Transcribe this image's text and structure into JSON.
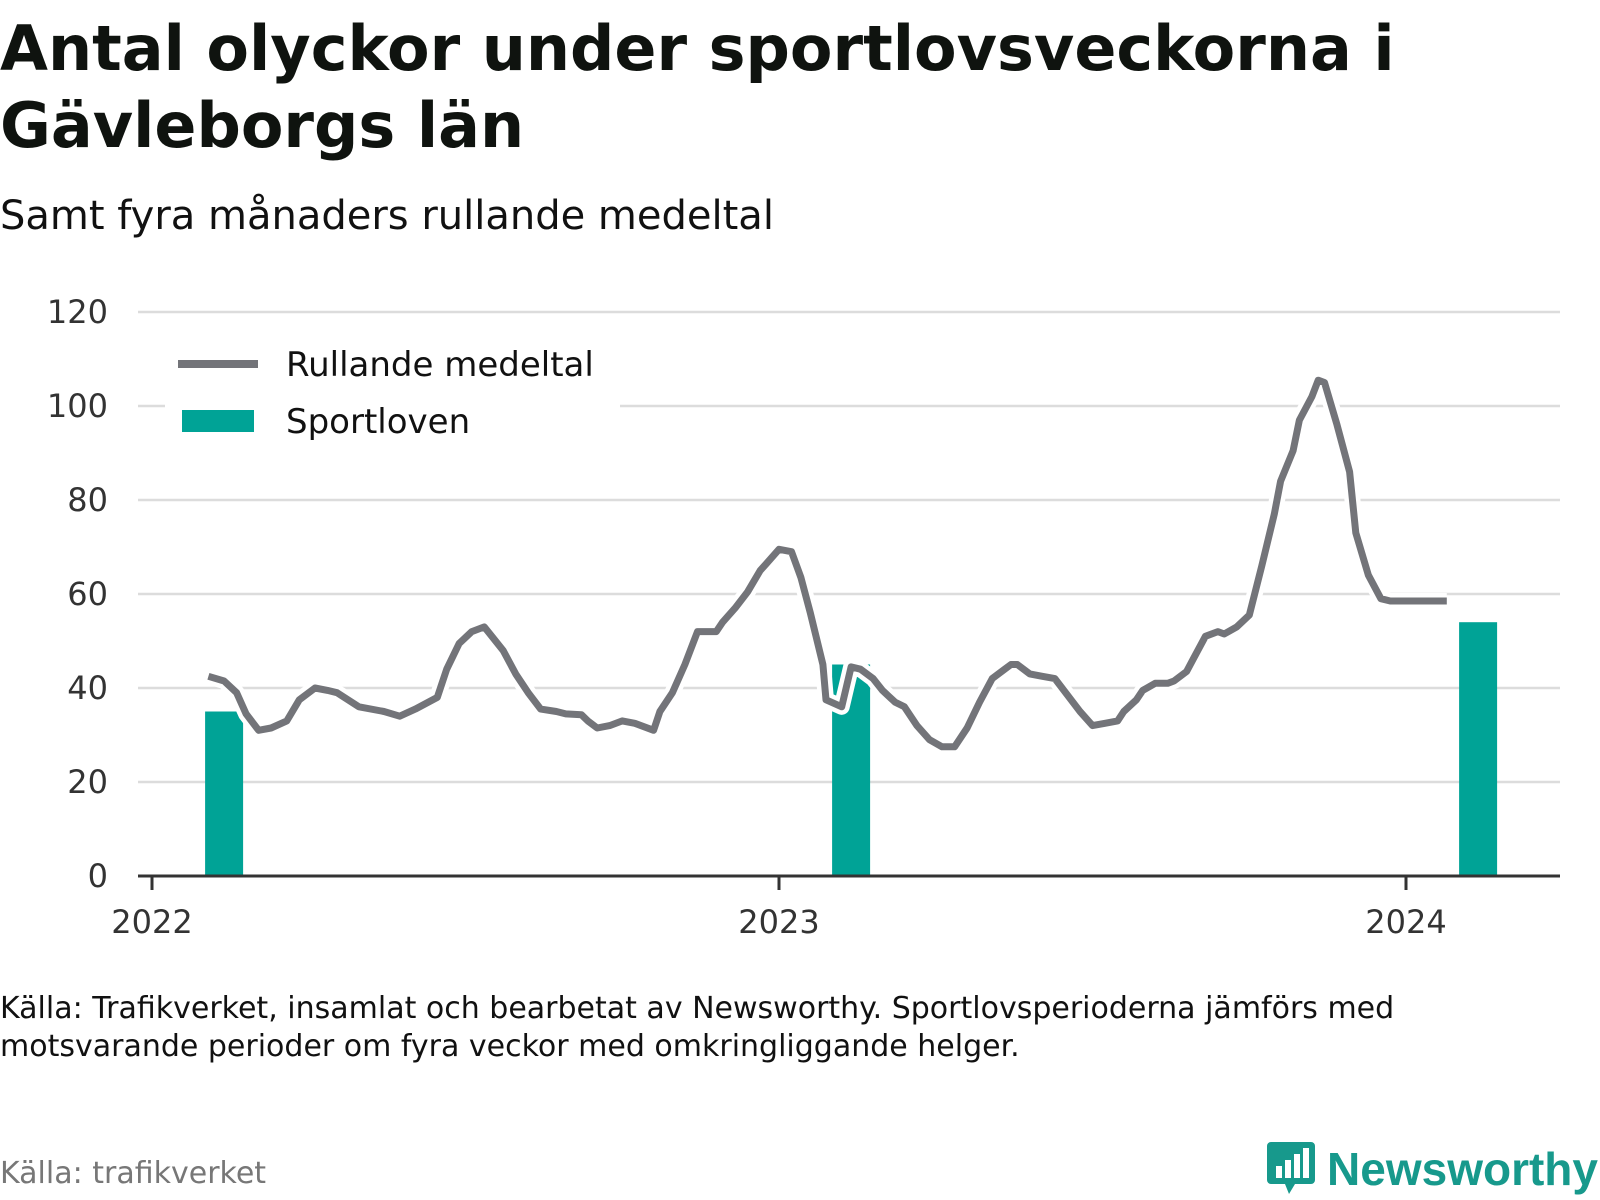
{
  "header": {
    "title": "Antal olyckor under sportlovsveckorna i Gävleborgs län",
    "subtitle": "Samt fyra månaders rullande medeltal"
  },
  "legend": {
    "line_label": "Rullande medeltal",
    "bar_label": "Sportloven",
    "placement": "top-left"
  },
  "footer": {
    "note": "Källa: Trafikverket, insamlat och bearbetat av Newsworthy. Sportlovsperioderna jämförs med motsvarande perioder om fyra veckor med omkringliggande helger.",
    "source": "Källa: trafikverket",
    "brand": "Newsworthy"
  },
  "colors": {
    "line": "#737479",
    "bar": "#00a396",
    "grid": "#dcdcdc",
    "axis": "#333333",
    "brand": "#17998c"
  },
  "icons": {
    "brand": "bar-chart-icon"
  },
  "chart_data": {
    "type": "line+bar",
    "x_axis": {
      "min": 2022.0,
      "max": 2024.25,
      "ticks": [
        "2022",
        "2023",
        "2024"
      ],
      "tick_values": [
        2022,
        2023,
        2024
      ]
    },
    "y_axis": {
      "min": 0,
      "max": 120,
      "ticks": [
        0,
        20,
        40,
        60,
        80,
        100,
        120
      ]
    },
    "grid": "horizontal",
    "bars": [
      {
        "x": 2022.115,
        "value": 35
      },
      {
        "x": 2023.115,
        "value": 45
      },
      {
        "x": 2024.115,
        "value": 54
      }
    ],
    "line": {
      "x": [
        2022.09,
        2022.115,
        2022.135,
        2022.15,
        2022.17,
        2022.19,
        2022.215,
        2022.235,
        2022.26,
        2022.28,
        2022.295,
        2022.33,
        2022.37,
        2022.395,
        2022.42,
        2022.455,
        2022.47,
        2022.49,
        2022.51,
        2022.53,
        2022.56,
        2022.58,
        2022.6,
        2022.62,
        2022.645,
        2022.66,
        2022.685,
        2022.695,
        2022.71,
        2022.73,
        2022.75,
        2022.77,
        2022.8,
        2022.81,
        2022.83,
        2022.85,
        2022.87,
        2022.88,
        2022.9,
        2022.91,
        2022.93,
        2022.95,
        2022.97,
        2022.98,
        2023.0,
        2023.02,
        2023.035,
        2023.05,
        2023.07,
        2023.075,
        2023.1,
        2023.115,
        2023.13,
        2023.15,
        2023.165,
        2023.185,
        2023.2,
        2023.22,
        2023.24,
        2023.26,
        2023.28,
        2023.3,
        2023.32,
        2023.34,
        2023.36,
        2023.37,
        2023.38,
        2023.4,
        2023.42,
        2023.44,
        2023.46,
        2023.48,
        2023.5,
        2023.52,
        2023.54,
        2023.55,
        2023.57,
        2023.58,
        2023.6,
        2023.62,
        2023.63,
        2023.65,
        2023.66,
        2023.68,
        2023.7,
        2023.71,
        2023.73,
        2023.75,
        2023.77,
        2023.79,
        2023.8,
        2023.82,
        2023.83,
        2023.85,
        2023.86,
        2023.87,
        2023.89,
        2023.91,
        2023.92,
        2023.94,
        2023.96,
        2023.975,
        2024.0,
        2024.01,
        2024.03,
        2024.05,
        2024.065,
        2024.09
      ],
      "y": [
        42.5,
        41.5,
        39,
        34.5,
        31,
        31.5,
        33,
        37.5,
        40,
        39.5,
        39,
        36,
        35,
        34,
        35.5,
        38,
        44,
        49.5,
        52,
        53,
        48,
        43,
        39,
        35.5,
        35,
        34.5,
        34.3,
        33,
        31.5,
        32,
        33,
        32.5,
        31,
        35,
        39,
        45,
        52,
        52,
        52,
        54,
        57,
        60.5,
        65,
        66.5,
        69.5,
        69,
        63.5,
        56,
        45,
        37.5,
        36,
        44.5,
        44,
        42,
        39.5,
        37,
        36,
        32,
        29,
        27.5,
        27.5,
        31.5,
        37,
        42,
        44,
        45,
        45,
        43,
        42.5,
        42,
        38.5,
        35,
        32,
        32.5,
        33,
        35,
        37.5,
        39.5,
        41,
        41,
        41.5,
        43.5,
        46,
        51,
        52,
        51.5,
        53,
        55.5,
        66,
        77,
        84,
        90.5,
        97,
        102,
        105.5,
        105,
        96,
        86,
        73,
        64,
        59,
        58.5,
        58.5,
        58.5,
        58.5,
        58.5,
        58.5,
        58.5
      ]
    }
  }
}
